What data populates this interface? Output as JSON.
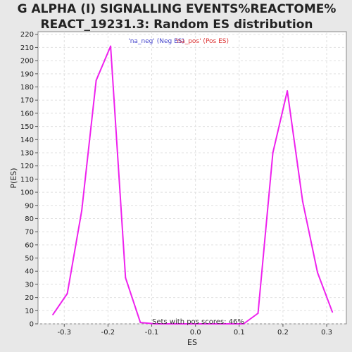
{
  "chart_data": {
    "type": "line",
    "title_line1": "G ALPHA (I) SIGNALLING EVENTS%REACTOME%",
    "title_line2": "REACT_19231.3: Random ES distribution",
    "xlabel": "ES",
    "ylabel": "P(ES)",
    "xlim": [
      -0.36,
      0.345
    ],
    "ylim": [
      0,
      222
    ],
    "x_ticks": [
      "-0.3",
      "-0.2",
      "-0.1",
      "0.0",
      "0.1",
      "0.2",
      "0.3"
    ],
    "x_tick_values": [
      -0.3,
      -0.2,
      -0.1,
      0.0,
      0.1,
      0.2,
      0.3
    ],
    "y_ticks": [
      0,
      10,
      20,
      30,
      40,
      50,
      60,
      70,
      80,
      90,
      100,
      110,
      120,
      130,
      140,
      150,
      160,
      170,
      180,
      190,
      200,
      210,
      220
    ],
    "grid": true,
    "legend": {
      "position": "top-center",
      "entries": [
        {
          "label": "'na_neg' (Neg ES)",
          "color": "#4444cc"
        },
        {
          "label": "'na_pos' (Pos ES)",
          "color": "#dd3333"
        }
      ]
    },
    "annotation": "Sets with pos scores: 46%",
    "series": [
      {
        "color": "#ee22ee",
        "x": [
          -0.326,
          -0.293,
          -0.26,
          -0.227,
          -0.194,
          -0.16,
          -0.126,
          -0.092,
          0.11,
          0.143,
          0.177,
          0.21,
          0.245,
          0.279,
          0.313
        ],
        "y": [
          7,
          23,
          86,
          185,
          211,
          35,
          1,
          0,
          0,
          8,
          130,
          177,
          93,
          39,
          9
        ]
      }
    ]
  }
}
